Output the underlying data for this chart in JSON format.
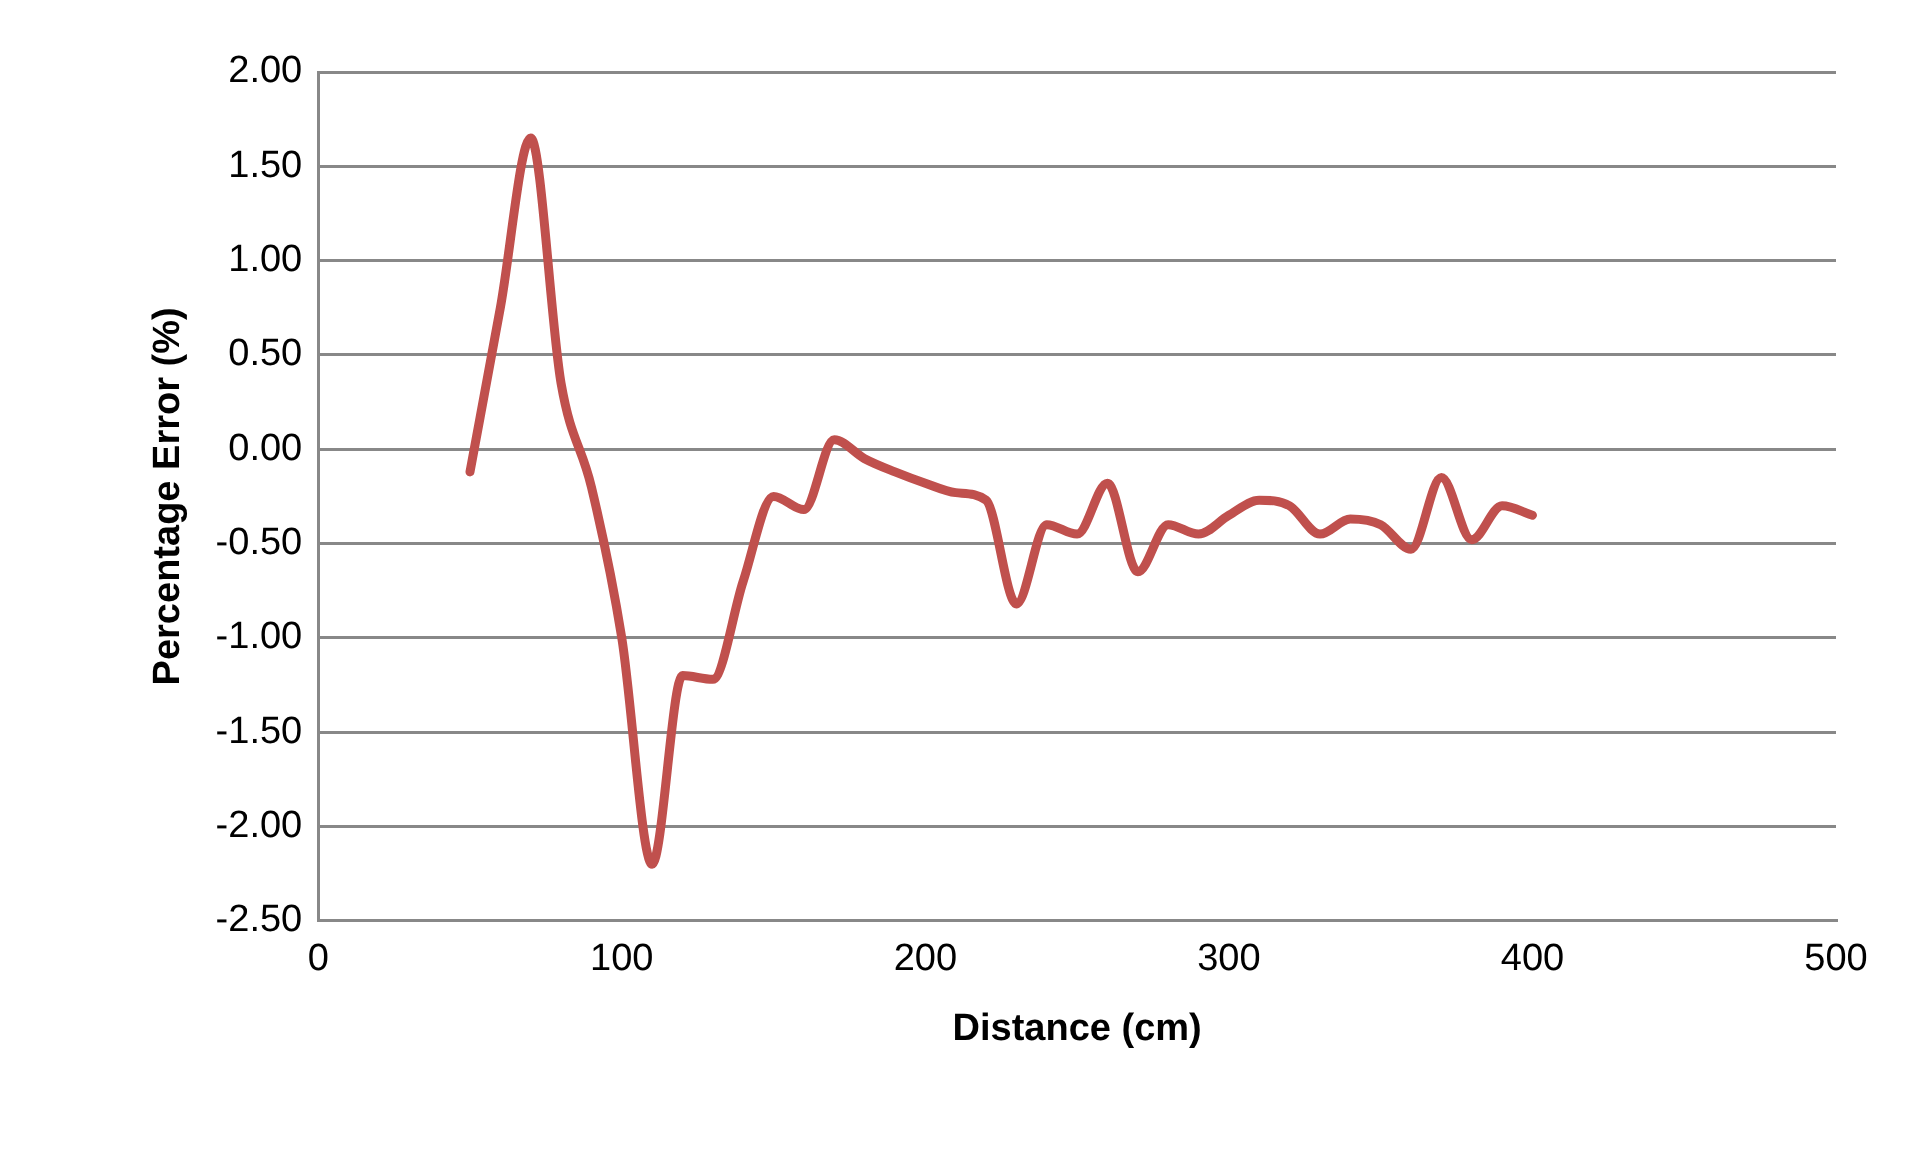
{
  "chart_data": {
    "type": "line",
    "xlabel": "Distance (cm)",
    "ylabel": "Percentage Error (%)",
    "x": [
      50,
      60,
      70,
      80,
      90,
      100,
      110,
      120,
      130,
      140,
      150,
      160,
      170,
      180,
      190,
      200,
      210,
      220,
      230,
      240,
      250,
      260,
      270,
      280,
      290,
      300,
      310,
      320,
      330,
      340,
      350,
      360,
      370,
      380,
      390,
      400
    ],
    "series": [
      {
        "color": "#c0504d",
        "values": [
          -0.12,
          0.75,
          1.65,
          0.35,
          -0.2,
          -1.0,
          -2.2,
          -1.2,
          -1.22,
          -0.7,
          -0.25,
          -0.32,
          0.05,
          -0.05,
          -0.12,
          -0.18,
          -0.23,
          -0.27,
          -0.82,
          -0.4,
          -0.45,
          -0.18,
          -0.65,
          -0.4,
          -0.45,
          -0.35,
          -0.27,
          -0.3,
          -0.45,
          -0.37,
          -0.4,
          -0.53,
          -0.15,
          -0.48,
          -0.3,
          -0.35
        ]
      }
    ],
    "xlim": [
      0,
      500
    ],
    "xticks": [
      0,
      100,
      200,
      300,
      400,
      500
    ],
    "ylim": [
      -2.5,
      2
    ],
    "yticks": [
      {
        "value": -2.5,
        "label": "-2.50"
      },
      {
        "value": -2,
        "label": "-2.00"
      },
      {
        "value": -1.5,
        "label": "-1.50"
      },
      {
        "value": -1,
        "label": "-1.00"
      },
      {
        "value": -0.5,
        "label": "-0.50"
      },
      {
        "value": 0,
        "label": "0.00"
      },
      {
        "value": 0.5,
        "label": "0.50"
      },
      {
        "value": 1,
        "label": "1.00"
      },
      {
        "value": 1.5,
        "label": "1.50"
      },
      {
        "value": 2,
        "label": "2.00"
      }
    ],
    "grid": "y",
    "legend": false,
    "marker": "none",
    "line_style": "solid"
  }
}
